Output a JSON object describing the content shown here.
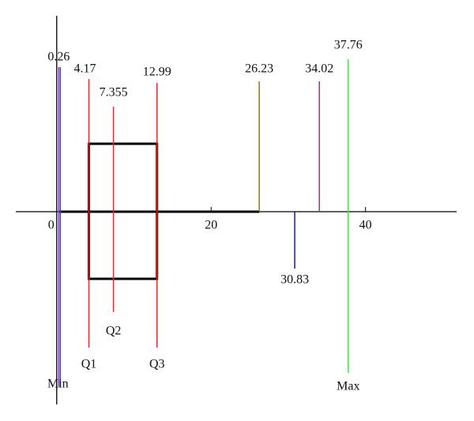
{
  "chart_data": {
    "type": "box",
    "xlim": [
      -5.3,
      51.8
    ],
    "xticks": [
      0,
      20,
      40
    ],
    "markers": [
      {
        "value": 0.26,
        "name": "Min",
        "color": "#9933cc"
      },
      {
        "value": 4.17,
        "name": "Q1",
        "color": "#ff2020"
      },
      {
        "value": 7.355,
        "name": "Q2",
        "color": "#ff2020"
      },
      {
        "value": 12.99,
        "name": "Q3",
        "color": "#ff2020"
      },
      {
        "value": 26.23,
        "color": "#8a7a10"
      },
      {
        "value": 30.83,
        "color": "#1a1a99"
      },
      {
        "value": 34.02,
        "color": "#a0309f"
      },
      {
        "value": 37.76,
        "name": "Max",
        "color": "#33ee33"
      }
    ]
  }
}
